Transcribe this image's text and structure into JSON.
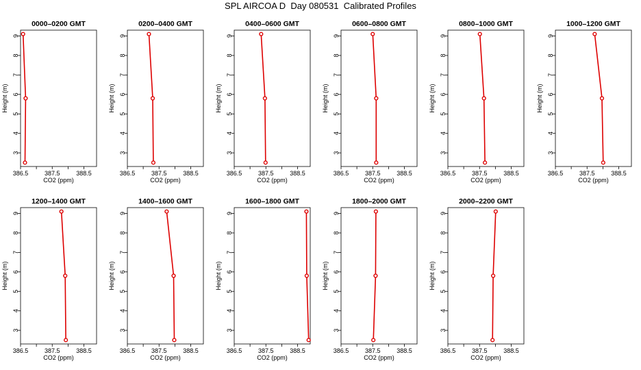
{
  "figure": {
    "title": "SPL AIRCOA D  Day 080531  Calibrated Profiles"
  },
  "chart_data": [
    {
      "type": "line",
      "title": "0000–0200 GMT",
      "xlabel": "CO2 (ppm)",
      "ylabel": "Height (m)",
      "xlim": [
        386.5,
        388.9
      ],
      "ylim": [
        2.3,
        9.3
      ],
      "xticks": [
        "386.5",
        "387.5",
        "388.5"
      ],
      "yticks": [
        "3",
        "4",
        "5",
        "6",
        "7",
        "8",
        "9"
      ],
      "series": [
        {
          "x": [
            386.58,
            386.66,
            386.64
          ],
          "y": [
            9.1,
            5.8,
            2.5
          ]
        }
      ]
    },
    {
      "type": "line",
      "title": "0200–0400 GMT",
      "xlabel": "CO2 (ppm)",
      "ylabel": "Height (m)",
      "xlim": [
        386.5,
        388.9
      ],
      "ylim": [
        2.3,
        9.3
      ],
      "xticks": [
        "386.5",
        "387.5",
        "388.5"
      ],
      "yticks": [
        "3",
        "4",
        "5",
        "6",
        "7",
        "8",
        "9"
      ],
      "series": [
        {
          "x": [
            387.18,
            387.3,
            387.32
          ],
          "y": [
            9.1,
            5.8,
            2.5
          ]
        }
      ]
    },
    {
      "type": "line",
      "title": "0400–0600 GMT",
      "xlabel": "CO2 (ppm)",
      "ylabel": "Height (m)",
      "xlim": [
        386.5,
        388.9
      ],
      "ylim": [
        2.3,
        9.3
      ],
      "xticks": [
        "386.5",
        "387.5",
        "388.5"
      ],
      "yticks": [
        "3",
        "4",
        "5",
        "6",
        "7",
        "8",
        "9"
      ],
      "series": [
        {
          "x": [
            387.35,
            387.47,
            387.49
          ],
          "y": [
            9.1,
            5.8,
            2.5
          ]
        }
      ]
    },
    {
      "type": "line",
      "title": "0600–0800 GMT",
      "xlabel": "CO2 (ppm)",
      "ylabel": "Height (m)",
      "xlim": [
        386.5,
        388.9
      ],
      "ylim": [
        2.3,
        9.3
      ],
      "xticks": [
        "386.5",
        "387.5",
        "388.5"
      ],
      "yticks": [
        "3",
        "4",
        "5",
        "6",
        "7",
        "8",
        "9"
      ],
      "series": [
        {
          "x": [
            387.5,
            387.61,
            387.61
          ],
          "y": [
            9.1,
            5.8,
            2.5
          ]
        }
      ]
    },
    {
      "type": "line",
      "title": "0800–1000 GMT",
      "xlabel": "CO2 (ppm)",
      "ylabel": "Height (m)",
      "xlim": [
        386.5,
        388.9
      ],
      "ylim": [
        2.3,
        9.3
      ],
      "xticks": [
        "386.5",
        "387.5",
        "388.5"
      ],
      "yticks": [
        "3",
        "4",
        "5",
        "6",
        "7",
        "8",
        "9"
      ],
      "series": [
        {
          "x": [
            387.51,
            387.64,
            387.67
          ],
          "y": [
            9.1,
            5.8,
            2.5
          ]
        }
      ]
    },
    {
      "type": "line",
      "title": "1000–1200 GMT",
      "xlabel": "CO2 (ppm)",
      "ylabel": "Height (m)",
      "xlim": [
        386.5,
        388.9
      ],
      "ylim": [
        2.3,
        9.3
      ],
      "xticks": [
        "386.5",
        "387.5",
        "388.5"
      ],
      "yticks": [
        "3",
        "4",
        "5",
        "6",
        "7",
        "8",
        "9"
      ],
      "series": [
        {
          "x": [
            387.74,
            387.97,
            388.01
          ],
          "y": [
            9.1,
            5.8,
            2.5
          ]
        }
      ]
    },
    {
      "type": "line",
      "title": "1200–1400 GMT",
      "xlabel": "CO2 (ppm)",
      "ylabel": "Height (m)",
      "xlim": [
        386.5,
        388.9
      ],
      "ylim": [
        2.3,
        9.3
      ],
      "xticks": [
        "386.5",
        "387.5",
        "388.5"
      ],
      "yticks": [
        "3",
        "4",
        "5",
        "6",
        "7",
        "8",
        "9"
      ],
      "series": [
        {
          "x": [
            387.79,
            387.91,
            387.93
          ],
          "y": [
            9.1,
            5.8,
            2.5
          ]
        }
      ]
    },
    {
      "type": "line",
      "title": "1400–1600 GMT",
      "xlabel": "CO2 (ppm)",
      "ylabel": "Height (m)",
      "xlim": [
        386.5,
        388.9
      ],
      "ylim": [
        2.3,
        9.3
      ],
      "xticks": [
        "386.5",
        "387.5",
        "388.5"
      ],
      "yticks": [
        "3",
        "4",
        "5",
        "6",
        "7",
        "8",
        "9"
      ],
      "series": [
        {
          "x": [
            387.74,
            387.96,
            387.98
          ],
          "y": [
            9.1,
            5.8,
            2.5
          ]
        }
      ]
    },
    {
      "type": "line",
      "title": "1600–1800 GMT",
      "xlabel": "CO2 (ppm)",
      "ylabel": "Height (m)",
      "xlim": [
        386.5,
        388.9
      ],
      "ylim": [
        2.3,
        9.3
      ],
      "xticks": [
        "386.5",
        "387.5",
        "388.5"
      ],
      "yticks": [
        "3",
        "4",
        "5",
        "6",
        "7",
        "8",
        "9"
      ],
      "series": [
        {
          "x": [
            388.78,
            388.79,
            388.85
          ],
          "y": [
            9.1,
            5.8,
            2.5
          ]
        }
      ]
    },
    {
      "type": "line",
      "title": "1800–2000 GMT",
      "xlabel": "CO2 (ppm)",
      "ylabel": "Height (m)",
      "xlim": [
        386.5,
        388.9
      ],
      "ylim": [
        2.3,
        9.3
      ],
      "xticks": [
        "386.5",
        "387.5",
        "388.5"
      ],
      "yticks": [
        "3",
        "4",
        "5",
        "6",
        "7",
        "8",
        "9"
      ],
      "series": [
        {
          "x": [
            387.6,
            387.59,
            387.52
          ],
          "y": [
            9.1,
            5.8,
            2.5
          ]
        }
      ]
    },
    {
      "type": "line",
      "title": "2000–2200 GMT",
      "xlabel": "CO2 (ppm)",
      "ylabel": "Height (m)",
      "xlim": [
        386.5,
        388.9
      ],
      "ylim": [
        2.3,
        9.3
      ],
      "xticks": [
        "386.5",
        "387.5",
        "388.5"
      ],
      "yticks": [
        "3",
        "4",
        "5",
        "6",
        "7",
        "8",
        "9"
      ],
      "series": [
        {
          "x": [
            388.01,
            387.93,
            387.91
          ],
          "y": [
            9.1,
            5.8,
            2.5
          ]
        }
      ]
    }
  ]
}
